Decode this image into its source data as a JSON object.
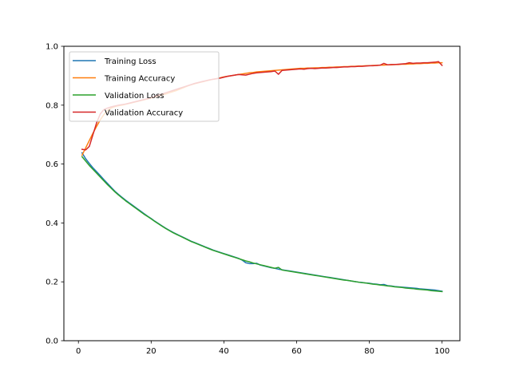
{
  "chart_data": {
    "type": "line",
    "title": "",
    "xlabel": "",
    "ylabel": "",
    "xlim": [
      -4.0,
      104.9
    ],
    "ylim": [
      0.0,
      1.0
    ],
    "xticks": [
      0,
      20,
      40,
      60,
      80,
      100
    ],
    "yticks": [
      0.0,
      0.2,
      0.4,
      0.6,
      0.8,
      1.0
    ],
    "xtick_labels": [
      "0",
      "20",
      "40",
      "60",
      "80",
      "100"
    ],
    "ytick_labels": [
      "0.0",
      "0.2",
      "0.4",
      "0.6",
      "0.8",
      "1.0"
    ],
    "grid": false,
    "legend_position": "top-left",
    "x": [
      1,
      2,
      3,
      4,
      5,
      6,
      7,
      8,
      9,
      10,
      11,
      12,
      13,
      14,
      15,
      16,
      17,
      18,
      19,
      20,
      21,
      22,
      23,
      24,
      25,
      26,
      27,
      28,
      29,
      30,
      31,
      32,
      33,
      34,
      35,
      36,
      37,
      38,
      39,
      40,
      41,
      42,
      43,
      44,
      45,
      46,
      47,
      48,
      49,
      50,
      51,
      52,
      53,
      54,
      55,
      56,
      57,
      58,
      59,
      60,
      61,
      62,
      63,
      64,
      65,
      66,
      67,
      68,
      69,
      70,
      71,
      72,
      73,
      74,
      75,
      76,
      77,
      78,
      79,
      80,
      81,
      82,
      83,
      84,
      85,
      86,
      87,
      88,
      89,
      90,
      91,
      92,
      93,
      94,
      95,
      96,
      97,
      98,
      99,
      100
    ],
    "series": [
      {
        "name": "Training Loss",
        "color": "#1f77b4",
        "values": [
          0.638,
          0.618,
          0.602,
          0.587,
          0.574,
          0.561,
          0.547,
          0.534,
          0.521,
          0.508,
          0.497,
          0.487,
          0.477,
          0.468,
          0.459,
          0.45,
          0.441,
          0.432,
          0.423,
          0.415,
          0.406,
          0.398,
          0.39,
          0.382,
          0.375,
          0.368,
          0.362,
          0.356,
          0.35,
          0.344,
          0.338,
          0.333,
          0.328,
          0.323,
          0.318,
          0.313,
          0.308,
          0.304,
          0.3,
          0.296,
          0.292,
          0.288,
          0.284,
          0.28,
          0.274,
          0.265,
          0.262,
          0.262,
          0.263,
          0.257,
          0.254,
          0.251,
          0.248,
          0.246,
          0.243,
          0.241,
          0.239,
          0.237,
          0.235,
          0.233,
          0.231,
          0.229,
          0.227,
          0.225,
          0.223,
          0.221,
          0.219,
          0.217,
          0.215,
          0.213,
          0.211,
          0.209,
          0.207,
          0.205,
          0.203,
          0.201,
          0.199,
          0.198,
          0.196,
          0.195,
          0.193,
          0.192,
          0.19,
          0.191,
          0.187,
          0.186,
          0.184,
          0.183,
          0.182,
          0.181,
          0.18,
          0.179,
          0.178,
          0.176,
          0.175,
          0.174,
          0.173,
          0.172,
          0.17,
          0.168
        ]
      },
      {
        "name": "Training Accuracy",
        "color": "#ff7f0e",
        "values": [
          0.63,
          0.655,
          0.68,
          0.705,
          0.728,
          0.75,
          0.768,
          0.782,
          0.79,
          0.795,
          0.798,
          0.8,
          0.803,
          0.806,
          0.809,
          0.812,
          0.815,
          0.818,
          0.821,
          0.824,
          0.828,
          0.831,
          0.835,
          0.838,
          0.842,
          0.846,
          0.85,
          0.855,
          0.86,
          0.865,
          0.869,
          0.873,
          0.876,
          0.879,
          0.882,
          0.885,
          0.888,
          0.89,
          0.893,
          0.896,
          0.898,
          0.9,
          0.902,
          0.904,
          0.906,
          0.908,
          0.91,
          0.911,
          0.913,
          0.914,
          0.915,
          0.916,
          0.917,
          0.918,
          0.919,
          0.92,
          0.921,
          0.922,
          0.923,
          0.924,
          0.925,
          0.925,
          0.926,
          0.926,
          0.927,
          0.927,
          0.928,
          0.928,
          0.929,
          0.929,
          0.93,
          0.93,
          0.931,
          0.931,
          0.932,
          0.932,
          0.933,
          0.933,
          0.934,
          0.934,
          0.935,
          0.935,
          0.936,
          0.936,
          0.937,
          0.937,
          0.938,
          0.938,
          0.939,
          0.939,
          0.94,
          0.94,
          0.941,
          0.941,
          0.942,
          0.942,
          0.943,
          0.943,
          0.944,
          0.944
        ]
      },
      {
        "name": "Validation Loss",
        "color": "#2ca02c",
        "values": [
          0.625,
          0.61,
          0.595,
          0.582,
          0.569,
          0.556,
          0.543,
          0.53,
          0.518,
          0.506,
          0.495,
          0.485,
          0.475,
          0.466,
          0.457,
          0.448,
          0.439,
          0.43,
          0.422,
          0.414,
          0.405,
          0.397,
          0.389,
          0.381,
          0.374,
          0.367,
          0.361,
          0.355,
          0.349,
          0.343,
          0.337,
          0.332,
          0.327,
          0.322,
          0.317,
          0.312,
          0.307,
          0.303,
          0.299,
          0.295,
          0.291,
          0.287,
          0.283,
          0.279,
          0.275,
          0.271,
          0.268,
          0.264,
          0.261,
          0.258,
          0.255,
          0.252,
          0.249,
          0.246,
          0.249,
          0.24,
          0.238,
          0.236,
          0.234,
          0.232,
          0.23,
          0.228,
          0.226,
          0.224,
          0.222,
          0.22,
          0.218,
          0.216,
          0.214,
          0.212,
          0.21,
          0.208,
          0.206,
          0.205,
          0.203,
          0.201,
          0.199,
          0.197,
          0.196,
          0.194,
          0.192,
          0.191,
          0.189,
          0.188,
          0.186,
          0.185,
          0.183,
          0.182,
          0.181,
          0.179,
          0.178,
          0.177,
          0.175,
          0.174,
          0.173,
          0.172,
          0.17,
          0.169,
          0.168,
          0.167
        ]
      },
      {
        "name": "Validation Accuracy",
        "color": "#d62728",
        "values": [
          0.65,
          0.648,
          0.66,
          0.7,
          0.74,
          0.77,
          0.785,
          0.79,
          0.794,
          0.797,
          0.8,
          0.802,
          0.804,
          0.807,
          0.81,
          0.813,
          0.816,
          0.819,
          0.822,
          0.826,
          0.83,
          0.834,
          0.838,
          0.842,
          0.846,
          0.85,
          0.854,
          0.858,
          0.862,
          0.866,
          0.87,
          0.874,
          0.877,
          0.88,
          0.883,
          0.886,
          0.888,
          0.89,
          0.892,
          0.895,
          0.898,
          0.9,
          0.902,
          0.904,
          0.903,
          0.902,
          0.905,
          0.908,
          0.91,
          0.911,
          0.912,
          0.913,
          0.914,
          0.916,
          0.905,
          0.918,
          0.919,
          0.92,
          0.921,
          0.922,
          0.923,
          0.922,
          0.924,
          0.925,
          0.924,
          0.925,
          0.926,
          0.926,
          0.927,
          0.928,
          0.928,
          0.929,
          0.93,
          0.93,
          0.931,
          0.931,
          0.932,
          0.932,
          0.933,
          0.934,
          0.934,
          0.935,
          0.936,
          0.942,
          0.937,
          0.938,
          0.938,
          0.939,
          0.94,
          0.941,
          0.944,
          0.942,
          0.943,
          0.943,
          0.944,
          0.944,
          0.945,
          0.946,
          0.948,
          0.935
        ]
      }
    ]
  }
}
